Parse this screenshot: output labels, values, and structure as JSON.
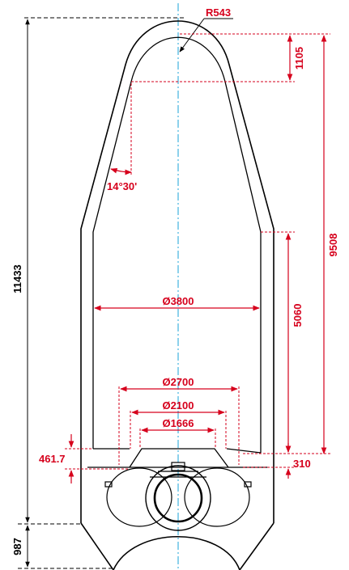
{
  "colors": {
    "outline": "#000000",
    "dimension": "#d6001c",
    "centerline": "#1aa3d9"
  },
  "dimensions": {
    "overall_height": "11433",
    "base_height": "987",
    "radius": "R543",
    "ogive_height": "1105",
    "fairing_height": "9508",
    "cone_angle": "14°30'",
    "cylinder_height": "5060",
    "diameter_outer": "Ø3800",
    "diameter_2700": "Ø2700",
    "diameter_2100": "Ø2100",
    "diameter_1666": "Ø1666",
    "adapter_height": "461.7",
    "interface_height": "310"
  }
}
